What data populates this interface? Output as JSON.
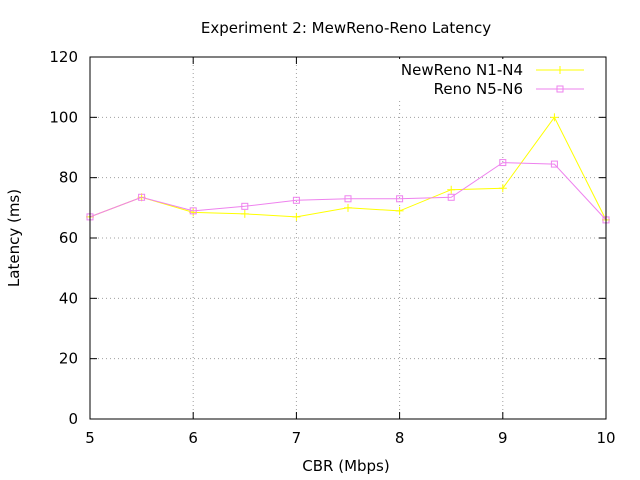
{
  "chart_data": {
    "type": "line",
    "title": "Experiment 2: MewReno-Reno Latency",
    "xlabel": "CBR (Mbps)",
    "ylabel": "Latency (ms)",
    "xlim": [
      5,
      10
    ],
    "ylim": [
      0,
      120
    ],
    "x_ticks": [
      "5",
      "6",
      "7",
      "8",
      "9",
      "10"
    ],
    "y_ticks": [
      "0",
      "20",
      "40",
      "60",
      "80",
      "100",
      "120"
    ],
    "grid": true,
    "legend_position": "top-right",
    "series": [
      {
        "name": "NewReno N1-N4",
        "color": "#ffff00",
        "marker": "plus",
        "x": [
          5,
          5.5,
          6,
          6.5,
          7,
          7.5,
          8,
          8.5,
          9,
          9.5,
          10
        ],
        "y": [
          67,
          73.5,
          68.5,
          68,
          67,
          70,
          69,
          76,
          76.5,
          100,
          66
        ]
      },
      {
        "name": "Reno N5-N6",
        "color": "#ee82ee",
        "marker": "square",
        "x": [
          5,
          5.5,
          6,
          6.5,
          7,
          7.5,
          8,
          8.5,
          9,
          9.5,
          10
        ],
        "y": [
          67,
          73.5,
          69,
          70.5,
          72.5,
          73,
          73,
          73.5,
          85,
          84.5,
          66
        ]
      }
    ]
  }
}
